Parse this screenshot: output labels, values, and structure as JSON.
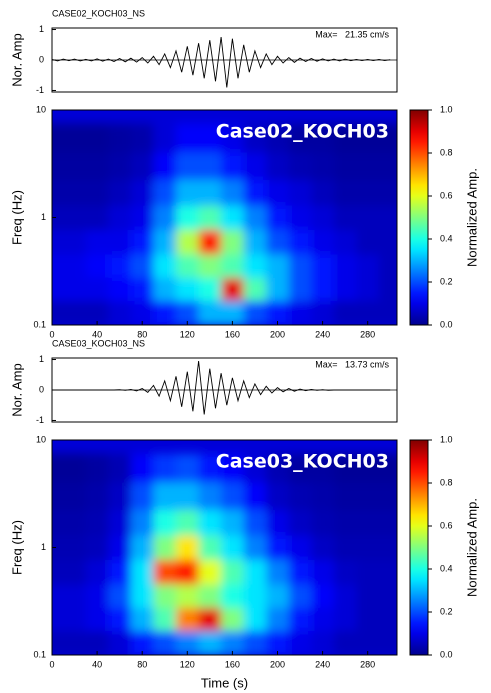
{
  "chart_data": [
    {
      "type": "line",
      "title": "CASE02_KOCH03_NS",
      "annotation": "Max=   21.35 cm/s",
      "ylabel": "Nor. Amp",
      "color": "#000000",
      "x": [
        0,
        5,
        10,
        15,
        20,
        25,
        30,
        35,
        40,
        45,
        50,
        55,
        60,
        65,
        70,
        75,
        80,
        85,
        90,
        95,
        100,
        105,
        110,
        115,
        120,
        125,
        130,
        135,
        140,
        145,
        150,
        155,
        160,
        165,
        170,
        175,
        180,
        185,
        190,
        195,
        200,
        205,
        210,
        215,
        220,
        225,
        230,
        235,
        240,
        245,
        250,
        255,
        260,
        265,
        270,
        275,
        280,
        285,
        290,
        295,
        300
      ],
      "values": [
        0.02,
        -0.03,
        0.03,
        -0.02,
        0.03,
        -0.03,
        0.02,
        -0.03,
        0.04,
        -0.04,
        0.03,
        -0.05,
        0.05,
        -0.06,
        0.06,
        -0.07,
        0.08,
        -0.1,
        0.12,
        -0.15,
        0.2,
        -0.25,
        0.3,
        -0.4,
        0.45,
        -0.5,
        0.55,
        -0.6,
        0.65,
        -0.7,
        0.75,
        -0.9,
        0.7,
        -0.6,
        0.5,
        -0.4,
        0.3,
        -0.25,
        0.2,
        -0.15,
        0.12,
        -0.1,
        0.08,
        -0.08,
        0.06,
        -0.05,
        0.05,
        -0.04,
        0.04,
        -0.03,
        0.03,
        -0.03,
        0.03,
        -0.02,
        0.02,
        -0.02,
        0.02,
        -0.02,
        0.02,
        -0.02,
        0.01
      ],
      "xlim": [
        0,
        306
      ],
      "ylim": [
        -1.05,
        1.05
      ],
      "yticks": [
        -1,
        0,
        1
      ]
    },
    {
      "type": "heatmap",
      "label": "Case02_KOCH03",
      "ylabel": "Freq (Hz)",
      "log_y": true,
      "colormap": "jet",
      "x": [
        0,
        20,
        40,
        60,
        80,
        100,
        120,
        140,
        160,
        180,
        200,
        220,
        240,
        260,
        280,
        300
      ],
      "y": [
        0.13,
        0.22,
        0.35,
        0.6,
        1,
        1.7,
        3,
        5.5
      ],
      "z": [
        [
          0.05,
          0.05,
          0.05,
          0.08,
          0.1,
          0.15,
          0.2,
          0.3,
          0.3,
          0.2,
          0.15,
          0.1,
          0.08,
          0.05,
          0.05,
          0.05
        ],
        [
          0.1,
          0.1,
          0.1,
          0.12,
          0.15,
          0.3,
          0.35,
          0.4,
          0.9,
          0.45,
          0.3,
          0.2,
          0.15,
          0.1,
          0.08,
          0.05
        ],
        [
          0.1,
          0.1,
          0.12,
          0.15,
          0.2,
          0.35,
          0.45,
          0.5,
          0.45,
          0.35,
          0.3,
          0.2,
          0.15,
          0.1,
          0.08,
          0.05
        ],
        [
          0.08,
          0.08,
          0.1,
          0.1,
          0.15,
          0.3,
          0.55,
          0.85,
          0.5,
          0.3,
          0.2,
          0.15,
          0.1,
          0.08,
          0.05,
          0.05
        ],
        [
          0.05,
          0.05,
          0.05,
          0.08,
          0.1,
          0.25,
          0.4,
          0.45,
          0.35,
          0.25,
          0.15,
          0.1,
          0.08,
          0.05,
          0.05,
          0.05
        ],
        [
          0.03,
          0.03,
          0.03,
          0.05,
          0.08,
          0.2,
          0.3,
          0.3,
          0.25,
          0.15,
          0.1,
          0.08,
          0.05,
          0.03,
          0.03,
          0.03
        ],
        [
          0.02,
          0.02,
          0.02,
          0.03,
          0.05,
          0.12,
          0.2,
          0.2,
          0.15,
          0.1,
          0.06,
          0.04,
          0.03,
          0.02,
          0.02,
          0.02
        ],
        [
          0.01,
          0.01,
          0.01,
          0.02,
          0.03,
          0.08,
          0.12,
          0.12,
          0.1,
          0.06,
          0.04,
          0.02,
          0.02,
          0.01,
          0.01,
          0.01
        ]
      ],
      "xlim": [
        0,
        306
      ],
      "ylim": [
        0.1,
        10
      ],
      "xticks": [
        0,
        40,
        80,
        120,
        160,
        200,
        240,
        280
      ],
      "yticks": [
        0.1,
        1,
        10
      ],
      "colorbar": {
        "label": "Normalized Amp.",
        "lim": [
          0,
          1
        ],
        "ticks": [
          {
            "value": 0,
            "label": "0.0"
          },
          {
            "value": 0.2,
            "label": "0.2"
          },
          {
            "value": 0.4,
            "label": "0.4"
          },
          {
            "value": 0.6,
            "label": "0.6"
          },
          {
            "value": 0.8,
            "label": "0.8"
          },
          {
            "value": 1,
            "label": "1.0"
          }
        ]
      }
    },
    {
      "type": "line",
      "title": "CASE03_KOCH03_NS",
      "annotation": "Max=   13.73 cm/s",
      "ylabel": "Nor. Amp",
      "color": "#000000",
      "x": [
        0,
        5,
        10,
        15,
        20,
        25,
        30,
        35,
        40,
        45,
        50,
        55,
        60,
        65,
        70,
        75,
        80,
        85,
        90,
        95,
        100,
        105,
        110,
        115,
        120,
        125,
        130,
        135,
        140,
        145,
        150,
        155,
        160,
        165,
        170,
        175,
        180,
        185,
        190,
        195,
        200,
        205,
        210,
        215,
        220,
        225,
        230,
        235,
        240,
        245,
        250,
        255,
        260,
        265,
        270,
        275,
        280,
        285,
        290,
        295,
        300
      ],
      "values": [
        0,
        0,
        0,
        0,
        0,
        0,
        0,
        0,
        0,
        0,
        0,
        0,
        0.01,
        -0.01,
        0.02,
        -0.03,
        0.05,
        -0.08,
        0.15,
        -0.2,
        0.3,
        -0.35,
        0.45,
        -0.55,
        0.6,
        -0.7,
        0.95,
        -0.8,
        0.7,
        -0.6,
        0.55,
        -0.5,
        0.4,
        -0.35,
        0.3,
        -0.25,
        0.2,
        -0.15,
        0.12,
        -0.1,
        0.08,
        -0.06,
        0.05,
        -0.04,
        0.03,
        -0.02,
        0.02,
        -0.01,
        0.01,
        -0.01,
        0,
        0,
        0,
        0,
        0,
        0,
        0,
        0,
        0,
        0,
        0
      ],
      "xlim": [
        0,
        306
      ],
      "ylim": [
        -1.05,
        1.05
      ],
      "yticks": [
        -1,
        0,
        1
      ]
    },
    {
      "type": "heatmap",
      "label": "Case03_KOCH03",
      "ylabel": "Freq (Hz)",
      "xlabel": "Time (s)",
      "log_y": true,
      "colormap": "jet",
      "x": [
        0,
        20,
        40,
        60,
        80,
        100,
        120,
        140,
        160,
        180,
        200,
        220,
        240,
        260,
        280,
        300
      ],
      "y": [
        0.13,
        0.22,
        0.35,
        0.6,
        1,
        1.7,
        3,
        5.5
      ],
      "z": [
        [
          0.05,
          0.05,
          0.05,
          0.08,
          0.15,
          0.2,
          0.25,
          0.3,
          0.25,
          0.2,
          0.15,
          0.1,
          0.08,
          0.05,
          0.05,
          0.05
        ],
        [
          0.08,
          0.08,
          0.1,
          0.15,
          0.3,
          0.45,
          0.75,
          0.9,
          0.5,
          0.35,
          0.25,
          0.15,
          0.1,
          0.08,
          0.05,
          0.05
        ],
        [
          0.08,
          0.08,
          0.1,
          0.2,
          0.35,
          0.5,
          0.55,
          0.5,
          0.4,
          0.35,
          0.3,
          0.2,
          0.12,
          0.08,
          0.05,
          0.05
        ],
        [
          0.05,
          0.05,
          0.08,
          0.15,
          0.35,
          0.8,
          0.85,
          0.6,
          0.45,
          0.35,
          0.25,
          0.15,
          0.1,
          0.06,
          0.05,
          0.05
        ],
        [
          0.04,
          0.04,
          0.05,
          0.1,
          0.3,
          0.5,
          0.65,
          0.45,
          0.35,
          0.25,
          0.15,
          0.1,
          0.06,
          0.04,
          0.04,
          0.04
        ],
        [
          0.03,
          0.03,
          0.04,
          0.08,
          0.25,
          0.4,
          0.45,
          0.35,
          0.3,
          0.2,
          0.1,
          0.06,
          0.04,
          0.03,
          0.03,
          0.03
        ],
        [
          0.02,
          0.02,
          0.03,
          0.06,
          0.2,
          0.3,
          0.3,
          0.25,
          0.2,
          0.12,
          0.06,
          0.04,
          0.03,
          0.02,
          0.02,
          0.02
        ],
        [
          0.01,
          0.01,
          0.02,
          0.04,
          0.12,
          0.18,
          0.2,
          0.15,
          0.12,
          0.08,
          0.04,
          0.02,
          0.02,
          0.01,
          0.01,
          0.01
        ]
      ],
      "xlim": [
        0,
        306
      ],
      "ylim": [
        0.1,
        10
      ],
      "xticks": [
        0,
        40,
        80,
        120,
        160,
        200,
        240,
        280
      ],
      "yticks": [
        0.1,
        1,
        10
      ],
      "colorbar": {
        "label": "Normalized Amp.",
        "lim": [
          0,
          1
        ],
        "ticks": [
          {
            "value": 0,
            "label": "0.0"
          },
          {
            "value": 0.2,
            "label": "0.2"
          },
          {
            "value": 0.4,
            "label": "0.4"
          },
          {
            "value": 0.6,
            "label": "0.6"
          },
          {
            "value": 0.8,
            "label": "0.8"
          },
          {
            "value": 1,
            "label": "1.0"
          }
        ]
      }
    }
  ]
}
